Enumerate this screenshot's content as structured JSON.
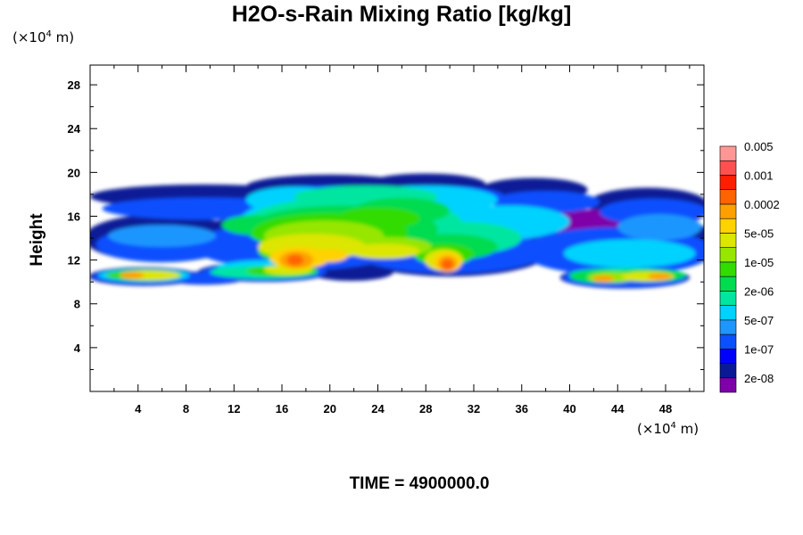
{
  "chart_data": {
    "type": "heatmap",
    "title": "H2O-s-Rain Mixing Ratio [kg/kg]",
    "ylabel": "Height",
    "xlabel": "",
    "x_unit": {
      "prefix": "(×10",
      "exp": "4",
      "suffix": " m)"
    },
    "y_unit": {
      "prefix": "(×10",
      "exp": "4",
      "suffix": " m)"
    },
    "xlim": [
      0,
      51.2
    ],
    "ylim": [
      0,
      29.8
    ],
    "x_ticks_major": [
      4,
      8,
      12,
      16,
      20,
      24,
      28,
      32,
      36,
      40,
      44,
      48
    ],
    "x_tick_labels": [
      "4",
      "8",
      "12",
      "16",
      "20",
      "24",
      "28",
      "32",
      "36",
      "40",
      "44",
      "48"
    ],
    "y_ticks_major": [
      4,
      8,
      12,
      16,
      20,
      24,
      28
    ],
    "y_tick_labels": [
      "4",
      "8",
      "12",
      "16",
      "20",
      "24",
      "28"
    ],
    "minor_step": 2,
    "colorbar": {
      "colors": [
        "#7f00a8",
        "#0a1a96",
        "#0000ff",
        "#0a50ff",
        "#1e96ff",
        "#00d2ff",
        "#00e6a0",
        "#00dc50",
        "#32dc00",
        "#96e600",
        "#dce600",
        "#ffd200",
        "#ffa000",
        "#ff6400",
        "#ff1e00",
        "#ff5050",
        "#ff9696"
      ],
      "labels": [
        "2e-08",
        "1e-07",
        "5e-07",
        "2e-06",
        "1e-05",
        "5e-05",
        "0.0002",
        "0.001",
        "0.005"
      ]
    },
    "time_label": "TIME = 4900000.0"
  }
}
